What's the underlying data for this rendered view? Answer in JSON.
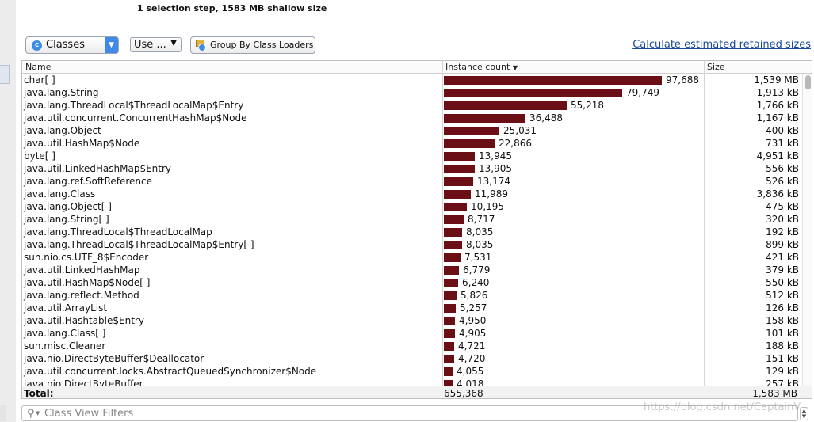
{
  "status_text": "1 selection step, 1583 MB shallow size",
  "toolbar": {
    "view_select": {
      "label": "Classes",
      "icon": "class-c-icon"
    },
    "use_select": {
      "label": "Use ...",
      "arrow": "▼"
    },
    "group_button": {
      "label": "Group By Class Loaders",
      "icon": "classloader-icon"
    },
    "calc_link": "Calculate estimated retained sizes"
  },
  "table": {
    "headers": {
      "name": "Name",
      "count": "Instance count",
      "size": "Size",
      "sort_indicator": "▼"
    },
    "rows": [
      {
        "name": "char[ ]",
        "count": 97688,
        "count_text": "97,688",
        "size": "1,539 MB"
      },
      {
        "name": "java.lang.String",
        "count": 79749,
        "count_text": "79,749",
        "size": "1,913 kB"
      },
      {
        "name": "java.lang.ThreadLocal$ThreadLocalMap$Entry",
        "count": 55218,
        "count_text": "55,218",
        "size": "1,766 kB"
      },
      {
        "name": "java.util.concurrent.ConcurrentHashMap$Node",
        "count": 36488,
        "count_text": "36,488",
        "size": "1,167 kB"
      },
      {
        "name": "java.lang.Object",
        "count": 25031,
        "count_text": "25,031",
        "size": "400 kB"
      },
      {
        "name": "java.util.HashMap$Node",
        "count": 22866,
        "count_text": "22,866",
        "size": "731 kB"
      },
      {
        "name": "byte[ ]",
        "count": 13945,
        "count_text": "13,945",
        "size": "4,951 kB"
      },
      {
        "name": "java.util.LinkedHashMap$Entry",
        "count": 13905,
        "count_text": "13,905",
        "size": "556 kB"
      },
      {
        "name": "java.lang.ref.SoftReference",
        "count": 13174,
        "count_text": "13,174",
        "size": "526 kB"
      },
      {
        "name": "java.lang.Class",
        "count": 11989,
        "count_text": "11,989",
        "size": "3,836 kB"
      },
      {
        "name": "java.lang.Object[ ]",
        "count": 10195,
        "count_text": "10,195",
        "size": "475 kB"
      },
      {
        "name": "java.lang.String[ ]",
        "count": 8717,
        "count_text": "8,717",
        "size": "320 kB"
      },
      {
        "name": "java.lang.ThreadLocal$ThreadLocalMap",
        "count": 8035,
        "count_text": "8,035",
        "size": "192 kB"
      },
      {
        "name": "java.lang.ThreadLocal$ThreadLocalMap$Entry[ ]",
        "count": 8035,
        "count_text": "8,035",
        "size": "899 kB"
      },
      {
        "name": "sun.nio.cs.UTF_8$Encoder",
        "count": 7531,
        "count_text": "7,531",
        "size": "421 kB"
      },
      {
        "name": "java.util.LinkedHashMap",
        "count": 6779,
        "count_text": "6,779",
        "size": "379 kB"
      },
      {
        "name": "java.util.HashMap$Node[ ]",
        "count": 6240,
        "count_text": "6,240",
        "size": "550 kB"
      },
      {
        "name": "java.lang.reflect.Method",
        "count": 5826,
        "count_text": "5,826",
        "size": "512 kB"
      },
      {
        "name": "java.util.ArrayList",
        "count": 5257,
        "count_text": "5,257",
        "size": "126 kB"
      },
      {
        "name": "java.util.Hashtable$Entry",
        "count": 4950,
        "count_text": "4,950",
        "size": "158 kB"
      },
      {
        "name": "java.lang.Class[ ]",
        "count": 4905,
        "count_text": "4,905",
        "size": "101 kB"
      },
      {
        "name": "sun.misc.Cleaner",
        "count": 4721,
        "count_text": "4,721",
        "size": "188 kB"
      },
      {
        "name": "java.nio.DirectByteBuffer$Deallocator",
        "count": 4720,
        "count_text": "4,720",
        "size": "151 kB"
      },
      {
        "name": "java.util.concurrent.locks.AbstractQueuedSynchronizer$Node",
        "count": 4055,
        "count_text": "4,055",
        "size": "129 kB"
      },
      {
        "name": "java.nio.DirectByteBuffer",
        "count": 4018,
        "count_text": "4,018",
        "size": "257 kB"
      }
    ],
    "total": {
      "label": "Total:",
      "count": "655,368",
      "size": "1,583 MB"
    },
    "bar_color": "#6b0f16"
  },
  "filter": {
    "placeholder": "Class View Filters",
    "icon": "search-icon"
  },
  "help_icon": "?",
  "watermark": "https://blog.csdn.net/CaptainV"
}
